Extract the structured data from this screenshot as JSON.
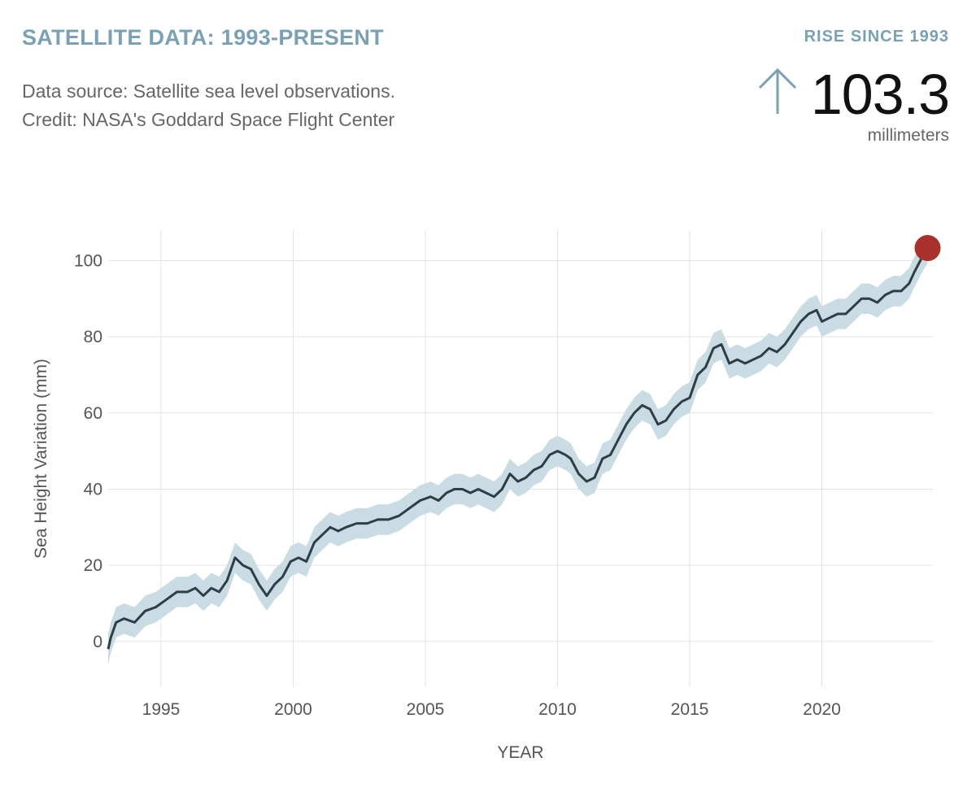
{
  "header": {
    "title": "SATELLITE DATA: 1993-PRESENT",
    "source_line1": "Data source: Satellite sea level observations.",
    "source_line2": "Credit: NASA's Goddard Space Flight Center"
  },
  "summary": {
    "label": "RISE SINCE 1993",
    "value": "103.3",
    "unit": "millimeters",
    "icon": "up-arrow-icon"
  },
  "colors": {
    "accent": "#7aa0b4",
    "line": "#2f3d44",
    "band": "#c9dbe3",
    "marker": "#a8322b",
    "grid": "#e3e3e3"
  },
  "chart_data": {
    "type": "line",
    "title": "SATELLITE DATA: 1993-PRESENT",
    "xlabel": "YEAR",
    "ylabel": "Sea Height Variation (mm)",
    "xlim": [
      1993,
      2024.2
    ],
    "ylim": [
      -12,
      108
    ],
    "x_ticks": [
      1995,
      2000,
      2005,
      2010,
      2015,
      2020
    ],
    "y_ticks": [
      0,
      20,
      40,
      60,
      80,
      100
    ],
    "grid": true,
    "uncertainty_band_mm": 4,
    "series": [
      {
        "name": "Sea Height Variation",
        "x": [
          1993.0,
          1993.1,
          1993.3,
          1993.6,
          1994.0,
          1994.4,
          1994.8,
          1995.2,
          1995.6,
          1996.0,
          1996.3,
          1996.6,
          1996.9,
          1997.2,
          1997.5,
          1997.8,
          1998.1,
          1998.4,
          1998.7,
          1999.0,
          1999.3,
          1999.6,
          1999.9,
          2000.2,
          2000.5,
          2000.8,
          2001.1,
          2001.4,
          2001.7,
          2002.0,
          2002.4,
          2002.8,
          2003.2,
          2003.6,
          2004.0,
          2004.4,
          2004.8,
          2005.2,
          2005.5,
          2005.8,
          2006.1,
          2006.4,
          2006.7,
          2007.0,
          2007.3,
          2007.6,
          2007.9,
          2008.2,
          2008.5,
          2008.8,
          2009.1,
          2009.4,
          2009.7,
          2010.0,
          2010.3,
          2010.5,
          2010.8,
          2011.1,
          2011.4,
          2011.7,
          2012.0,
          2012.3,
          2012.6,
          2012.9,
          2013.2,
          2013.5,
          2013.8,
          2014.1,
          2014.4,
          2014.7,
          2015.0,
          2015.3,
          2015.6,
          2015.9,
          2016.2,
          2016.5,
          2016.8,
          2017.1,
          2017.4,
          2017.7,
          2018.0,
          2018.3,
          2018.6,
          2018.9,
          2019.2,
          2019.5,
          2019.8,
          2020.0,
          2020.3,
          2020.6,
          2020.9,
          2021.2,
          2021.5,
          2021.8,
          2022.1,
          2022.4,
          2022.7,
          2023.0,
          2023.3,
          2023.5,
          2023.8,
          2024.0
        ],
        "values": [
          -2,
          1,
          5,
          6,
          5,
          8,
          9,
          11,
          13,
          13,
          14,
          12,
          14,
          13,
          16,
          22,
          20,
          19,
          15,
          12,
          15,
          17,
          21,
          22,
          21,
          26,
          28,
          30,
          29,
          30,
          31,
          31,
          32,
          32,
          33,
          35,
          37,
          38,
          37,
          39,
          40,
          40,
          39,
          40,
          39,
          38,
          40,
          44,
          42,
          43,
          45,
          46,
          49,
          50,
          49,
          48,
          44,
          42,
          43,
          48,
          49,
          53,
          57,
          60,
          62,
          61,
          57,
          58,
          61,
          63,
          64,
          70,
          72,
          77,
          78,
          73,
          74,
          73,
          74,
          75,
          77,
          76,
          78,
          81,
          84,
          86,
          87,
          84,
          85,
          86,
          86,
          88,
          90,
          90,
          89,
          91,
          92,
          92,
          94,
          97,
          101,
          103.3
        ]
      }
    ],
    "latest_marker": {
      "x": 2024.0,
      "y": 103.3
    }
  }
}
